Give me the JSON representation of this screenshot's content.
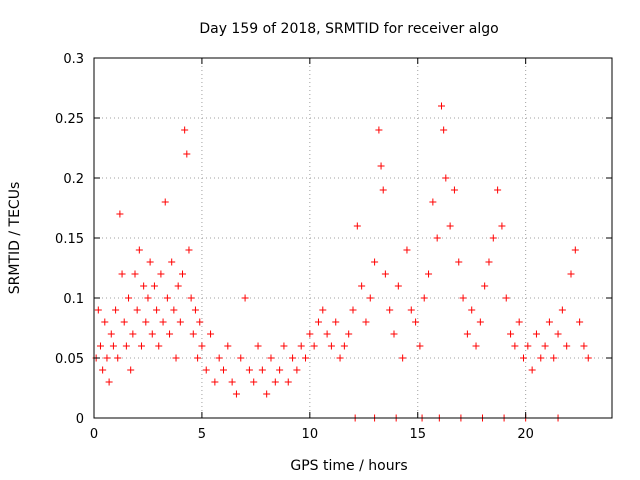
{
  "chart_data": {
    "type": "scatter",
    "title": "Day 159 of 2018, SRMTID for receiver algo",
    "xlabel": "GPS time / hours",
    "ylabel": "SRMTID / TECUs",
    "xlim": [
      0,
      24
    ],
    "ylim": [
      0,
      0.3
    ],
    "xticks": [
      0,
      5,
      10,
      15,
      20
    ],
    "xtick_labels": [
      "0",
      "5",
      "10",
      "15",
      "20"
    ],
    "yticks": [
      0,
      0.05,
      0.1,
      0.15,
      0.2,
      0.25,
      0.3
    ],
    "ytick_labels": [
      "0",
      "0.05",
      "0.1",
      "0.15",
      "0.2",
      "0.25",
      "0.3"
    ],
    "grid": true,
    "marker": "+",
    "color": "#ff0000",
    "series": [
      {
        "name": "SRMTID",
        "points": [
          [
            0.1,
            0.05
          ],
          [
            0.2,
            0.09
          ],
          [
            0.3,
            0.06
          ],
          [
            0.4,
            0.04
          ],
          [
            0.5,
            0.08
          ],
          [
            0.6,
            0.05
          ],
          [
            0.7,
            0.03
          ],
          [
            0.8,
            0.07
          ],
          [
            0.9,
            0.06
          ],
          [
            1.0,
            0.09
          ],
          [
            1.1,
            0.05
          ],
          [
            1.2,
            0.17
          ],
          [
            1.3,
            0.12
          ],
          [
            1.4,
            0.08
          ],
          [
            1.5,
            0.06
          ],
          [
            1.6,
            0.1
          ],
          [
            1.7,
            0.04
          ],
          [
            1.8,
            0.07
          ],
          [
            1.9,
            0.12
          ],
          [
            2.0,
            0.09
          ],
          [
            2.1,
            0.14
          ],
          [
            2.2,
            0.06
          ],
          [
            2.3,
            0.11
          ],
          [
            2.4,
            0.08
          ],
          [
            2.5,
            0.1
          ],
          [
            2.6,
            0.13
          ],
          [
            2.7,
            0.07
          ],
          [
            2.8,
            0.11
          ],
          [
            2.9,
            0.09
          ],
          [
            3.0,
            0.06
          ],
          [
            3.1,
            0.12
          ],
          [
            3.2,
            0.08
          ],
          [
            3.3,
            0.18
          ],
          [
            3.4,
            0.1
          ],
          [
            3.5,
            0.07
          ],
          [
            3.6,
            0.13
          ],
          [
            3.7,
            0.09
          ],
          [
            3.8,
            0.05
          ],
          [
            3.9,
            0.11
          ],
          [
            4.0,
            0.08
          ],
          [
            4.1,
            0.12
          ],
          [
            4.2,
            0.24
          ],
          [
            4.3,
            0.22
          ],
          [
            4.4,
            0.14
          ],
          [
            4.5,
            0.1
          ],
          [
            4.6,
            0.07
          ],
          [
            4.7,
            0.09
          ],
          [
            4.8,
            0.05
          ],
          [
            4.9,
            0.08
          ],
          [
            5.0,
            0.06
          ],
          [
            5.2,
            0.04
          ],
          [
            5.4,
            0.07
          ],
          [
            5.6,
            0.03
          ],
          [
            5.8,
            0.05
          ],
          [
            6.0,
            0.04
          ],
          [
            6.2,
            0.06
          ],
          [
            6.4,
            0.03
          ],
          [
            6.6,
            0.02
          ],
          [
            6.8,
            0.05
          ],
          [
            7.0,
            0.1
          ],
          [
            7.2,
            0.04
          ],
          [
            7.4,
            0.03
          ],
          [
            7.6,
            0.06
          ],
          [
            7.8,
            0.04
          ],
          [
            8.0,
            0.02
          ],
          [
            8.2,
            0.05
          ],
          [
            8.4,
            0.03
          ],
          [
            8.6,
            0.04
          ],
          [
            8.8,
            0.06
          ],
          [
            9.0,
            0.03
          ],
          [
            9.2,
            0.05
          ],
          [
            9.4,
            0.04
          ],
          [
            9.6,
            0.06
          ],
          [
            9.8,
            0.05
          ],
          [
            10.0,
            0.07
          ],
          [
            10.2,
            0.06
          ],
          [
            10.4,
            0.08
          ],
          [
            10.6,
            0.09
          ],
          [
            10.8,
            0.07
          ],
          [
            11.0,
            0.06
          ],
          [
            11.2,
            0.08
          ],
          [
            11.4,
            0.05
          ],
          [
            11.6,
            0.06
          ],
          [
            11.8,
            0.07
          ],
          [
            12.0,
            0.09
          ],
          [
            12.2,
            0.16
          ],
          [
            12.4,
            0.11
          ],
          [
            12.6,
            0.08
          ],
          [
            12.8,
            0.1
          ],
          [
            13.0,
            0.13
          ],
          [
            13.2,
            0.24
          ],
          [
            13.3,
            0.21
          ],
          [
            13.4,
            0.19
          ],
          [
            13.5,
            0.12
          ],
          [
            13.7,
            0.09
          ],
          [
            13.9,
            0.07
          ],
          [
            14.1,
            0.11
          ],
          [
            14.3,
            0.05
          ],
          [
            14.5,
            0.14
          ],
          [
            14.7,
            0.09
          ],
          [
            14.9,
            0.08
          ],
          [
            15.1,
            0.06
          ],
          [
            15.3,
            0.1
          ],
          [
            15.5,
            0.12
          ],
          [
            15.7,
            0.18
          ],
          [
            15.9,
            0.15
          ],
          [
            16.1,
            0.26
          ],
          [
            16.2,
            0.24
          ],
          [
            16.3,
            0.2
          ],
          [
            16.5,
            0.16
          ],
          [
            16.7,
            0.19
          ],
          [
            16.9,
            0.13
          ],
          [
            17.1,
            0.1
          ],
          [
            17.3,
            0.07
          ],
          [
            17.5,
            0.09
          ],
          [
            17.7,
            0.06
          ],
          [
            17.9,
            0.08
          ],
          [
            18.1,
            0.11
          ],
          [
            18.3,
            0.13
          ],
          [
            18.5,
            0.15
          ],
          [
            18.7,
            0.19
          ],
          [
            18.9,
            0.16
          ],
          [
            19.1,
            0.1
          ],
          [
            19.3,
            0.07
          ],
          [
            19.5,
            0.06
          ],
          [
            19.7,
            0.08
          ],
          [
            19.9,
            0.05
          ],
          [
            20.1,
            0.06
          ],
          [
            20.3,
            0.04
          ],
          [
            20.5,
            0.07
          ],
          [
            20.7,
            0.05
          ],
          [
            20.9,
            0.06
          ],
          [
            21.1,
            0.08
          ],
          [
            21.3,
            0.05
          ],
          [
            21.5,
            0.07
          ],
          [
            21.7,
            0.09
          ],
          [
            21.9,
            0.06
          ],
          [
            22.1,
            0.12
          ],
          [
            22.3,
            0.14
          ],
          [
            22.5,
            0.08
          ],
          [
            22.7,
            0.06
          ],
          [
            22.9,
            0.05
          ],
          [
            12.1,
            0.0
          ],
          [
            13.0,
            0.0
          ],
          [
            14.0,
            0.0
          ],
          [
            15.2,
            0.0
          ],
          [
            16.0,
            0.0
          ],
          [
            17.0,
            0.0
          ],
          [
            18.0,
            0.0
          ],
          [
            19.0,
            0.0
          ],
          [
            20.0,
            0.0
          ],
          [
            21.5,
            0.0
          ]
        ]
      }
    ]
  }
}
